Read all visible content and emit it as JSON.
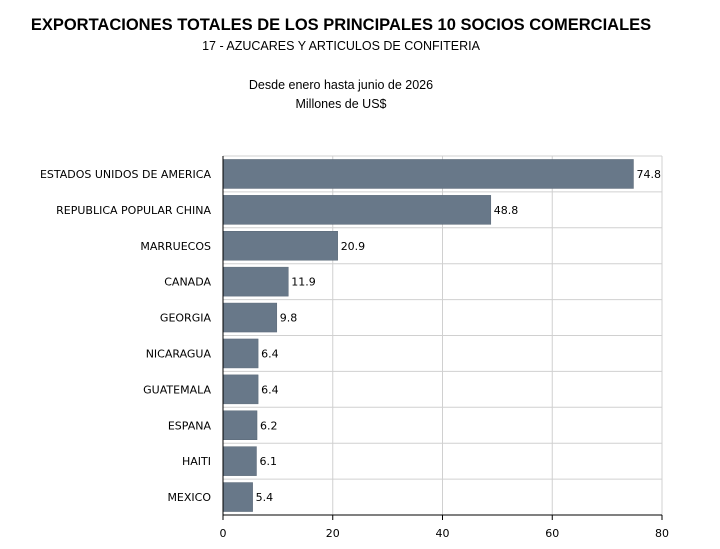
{
  "header": {
    "title": "EXPORTACIONES TOTALES DE LOS PRINCIPALES 10 SOCIOS COMERCIALES",
    "subtitle": "17 - AZUCARES Y ARTICULOS DE CONFITERIA",
    "period": "Desde enero hasta junio de 2026",
    "units": "Millones de US$"
  },
  "chart_data": {
    "type": "bar",
    "orientation": "horizontal",
    "title": "EXPORTACIONES TOTALES DE LOS PRINCIPALES 10 SOCIOS COMERCIALES",
    "subtitle": "17 - AZUCARES Y ARTICULOS DE CONFITERIA",
    "categories": [
      "ESTADOS UNIDOS DE AMERICA",
      "REPUBLICA POPULAR CHINA",
      "MARRUECOS",
      "CANADA",
      "GEORGIA",
      "NICARAGUA",
      "GUATEMALA",
      "ESPANA",
      "HAITI",
      "MEXICO"
    ],
    "values": [
      74.8,
      48.8,
      20.9,
      11.9,
      9.8,
      6.4,
      6.4,
      6.2,
      6.1,
      5.4
    ],
    "value_labels": [
      "74.8",
      "48.8",
      "20.9",
      "11.9",
      "9.8",
      "6.4",
      "6.4",
      "6.2",
      "6.1",
      "5.4"
    ],
    "xlim": [
      0,
      80
    ],
    "xticks": [
      0,
      20,
      40,
      60,
      80
    ],
    "grid": true,
    "bar_color": "#687889",
    "grid_color": "#d0d0d0"
  }
}
